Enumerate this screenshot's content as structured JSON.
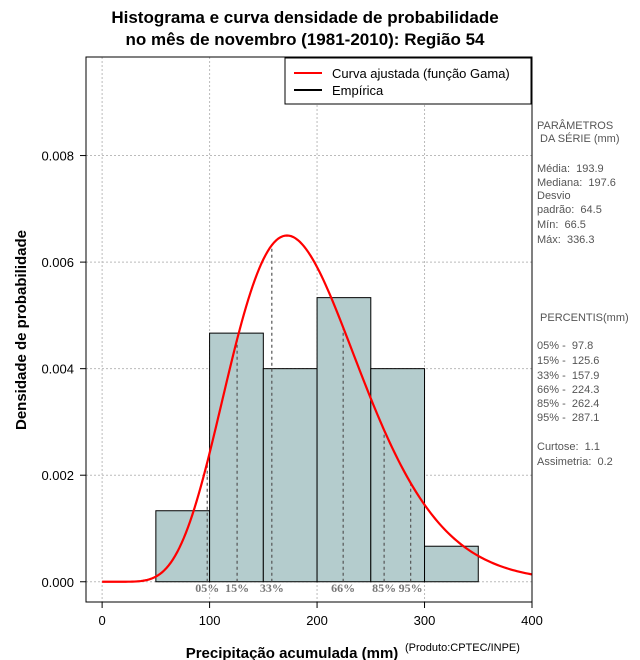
{
  "chart_data": {
    "type": "histogram",
    "title_line1": "Histograma e curva densidade de probabilidade",
    "title_line2": "no mês de novembro (1981-2010): Região 54",
    "xlabel": "Precipitação acumulada (mm)",
    "ylabel": "Densidade de probabilidade",
    "credit": "(Produto:CPTEC/INPE)",
    "xlim": [
      -15,
      400
    ],
    "ylim": [
      -0.00038,
      0.00985
    ],
    "x_ticks": [
      0,
      100,
      200,
      300,
      400
    ],
    "y_ticks": [
      0.0,
      0.002,
      0.004,
      0.006,
      0.008
    ],
    "y_tick_labels": [
      "0.000",
      "0.002",
      "0.004",
      "0.006",
      "0.008"
    ],
    "bins": [
      {
        "start": 50,
        "end": 100,
        "density": 0.001333
      },
      {
        "start": 100,
        "end": 150,
        "density": 0.004667
      },
      {
        "start": 150,
        "end": 200,
        "density": 0.004
      },
      {
        "start": 200,
        "end": 250,
        "density": 0.005333
      },
      {
        "start": 250,
        "end": 300,
        "density": 0.004
      },
      {
        "start": 300,
        "end": 350,
        "density": 0.000667
      }
    ],
    "gamma_fit": {
      "shape": 9.0,
      "scale": 21.5,
      "peak_density": 0.0065,
      "peak_x": 172
    },
    "percentiles": [
      {
        "label": "05%",
        "value": 97.8
      },
      {
        "label": "15%",
        "value": 125.6
      },
      {
        "label": "33%",
        "value": 157.9
      },
      {
        "label": "66%",
        "value": 224.3
      },
      {
        "label": "85%",
        "value": 262.4
      },
      {
        "label": "95%",
        "value": 287.1
      }
    ],
    "legend": [
      {
        "label": "Curva ajustada (função Gama)",
        "color": "#ff0000"
      },
      {
        "label": "Empírica",
        "color": "#000000"
      }
    ],
    "colors": {
      "bar_fill": "#b4cccd",
      "curve": "#ff0000",
      "grid": "#bbbbbb"
    }
  },
  "params": {
    "header1": "PARÂMETROS",
    "header2": " DA SÉRIE (mm)",
    "media": "Média:  193.9",
    "mediana": "Mediana:  197.6",
    "desvio1": "Desvio",
    "desvio2": "padrão:  64.5",
    "min": "Mín:  66.5",
    "max": "Máx:  336.3"
  },
  "percentis_panel": {
    "header": " PERCENTIS(mm)",
    "p05": "05% -  97.8",
    "p15": "15% -  125.6",
    "p33": "33% -  157.9",
    "p66": "66% -  224.3",
    "p85": "85% -  262.4",
    "p95": "95% -  287.1",
    "curtose": "Curtose:  1.1",
    "assimetria": "Assimetria:  0.2"
  }
}
